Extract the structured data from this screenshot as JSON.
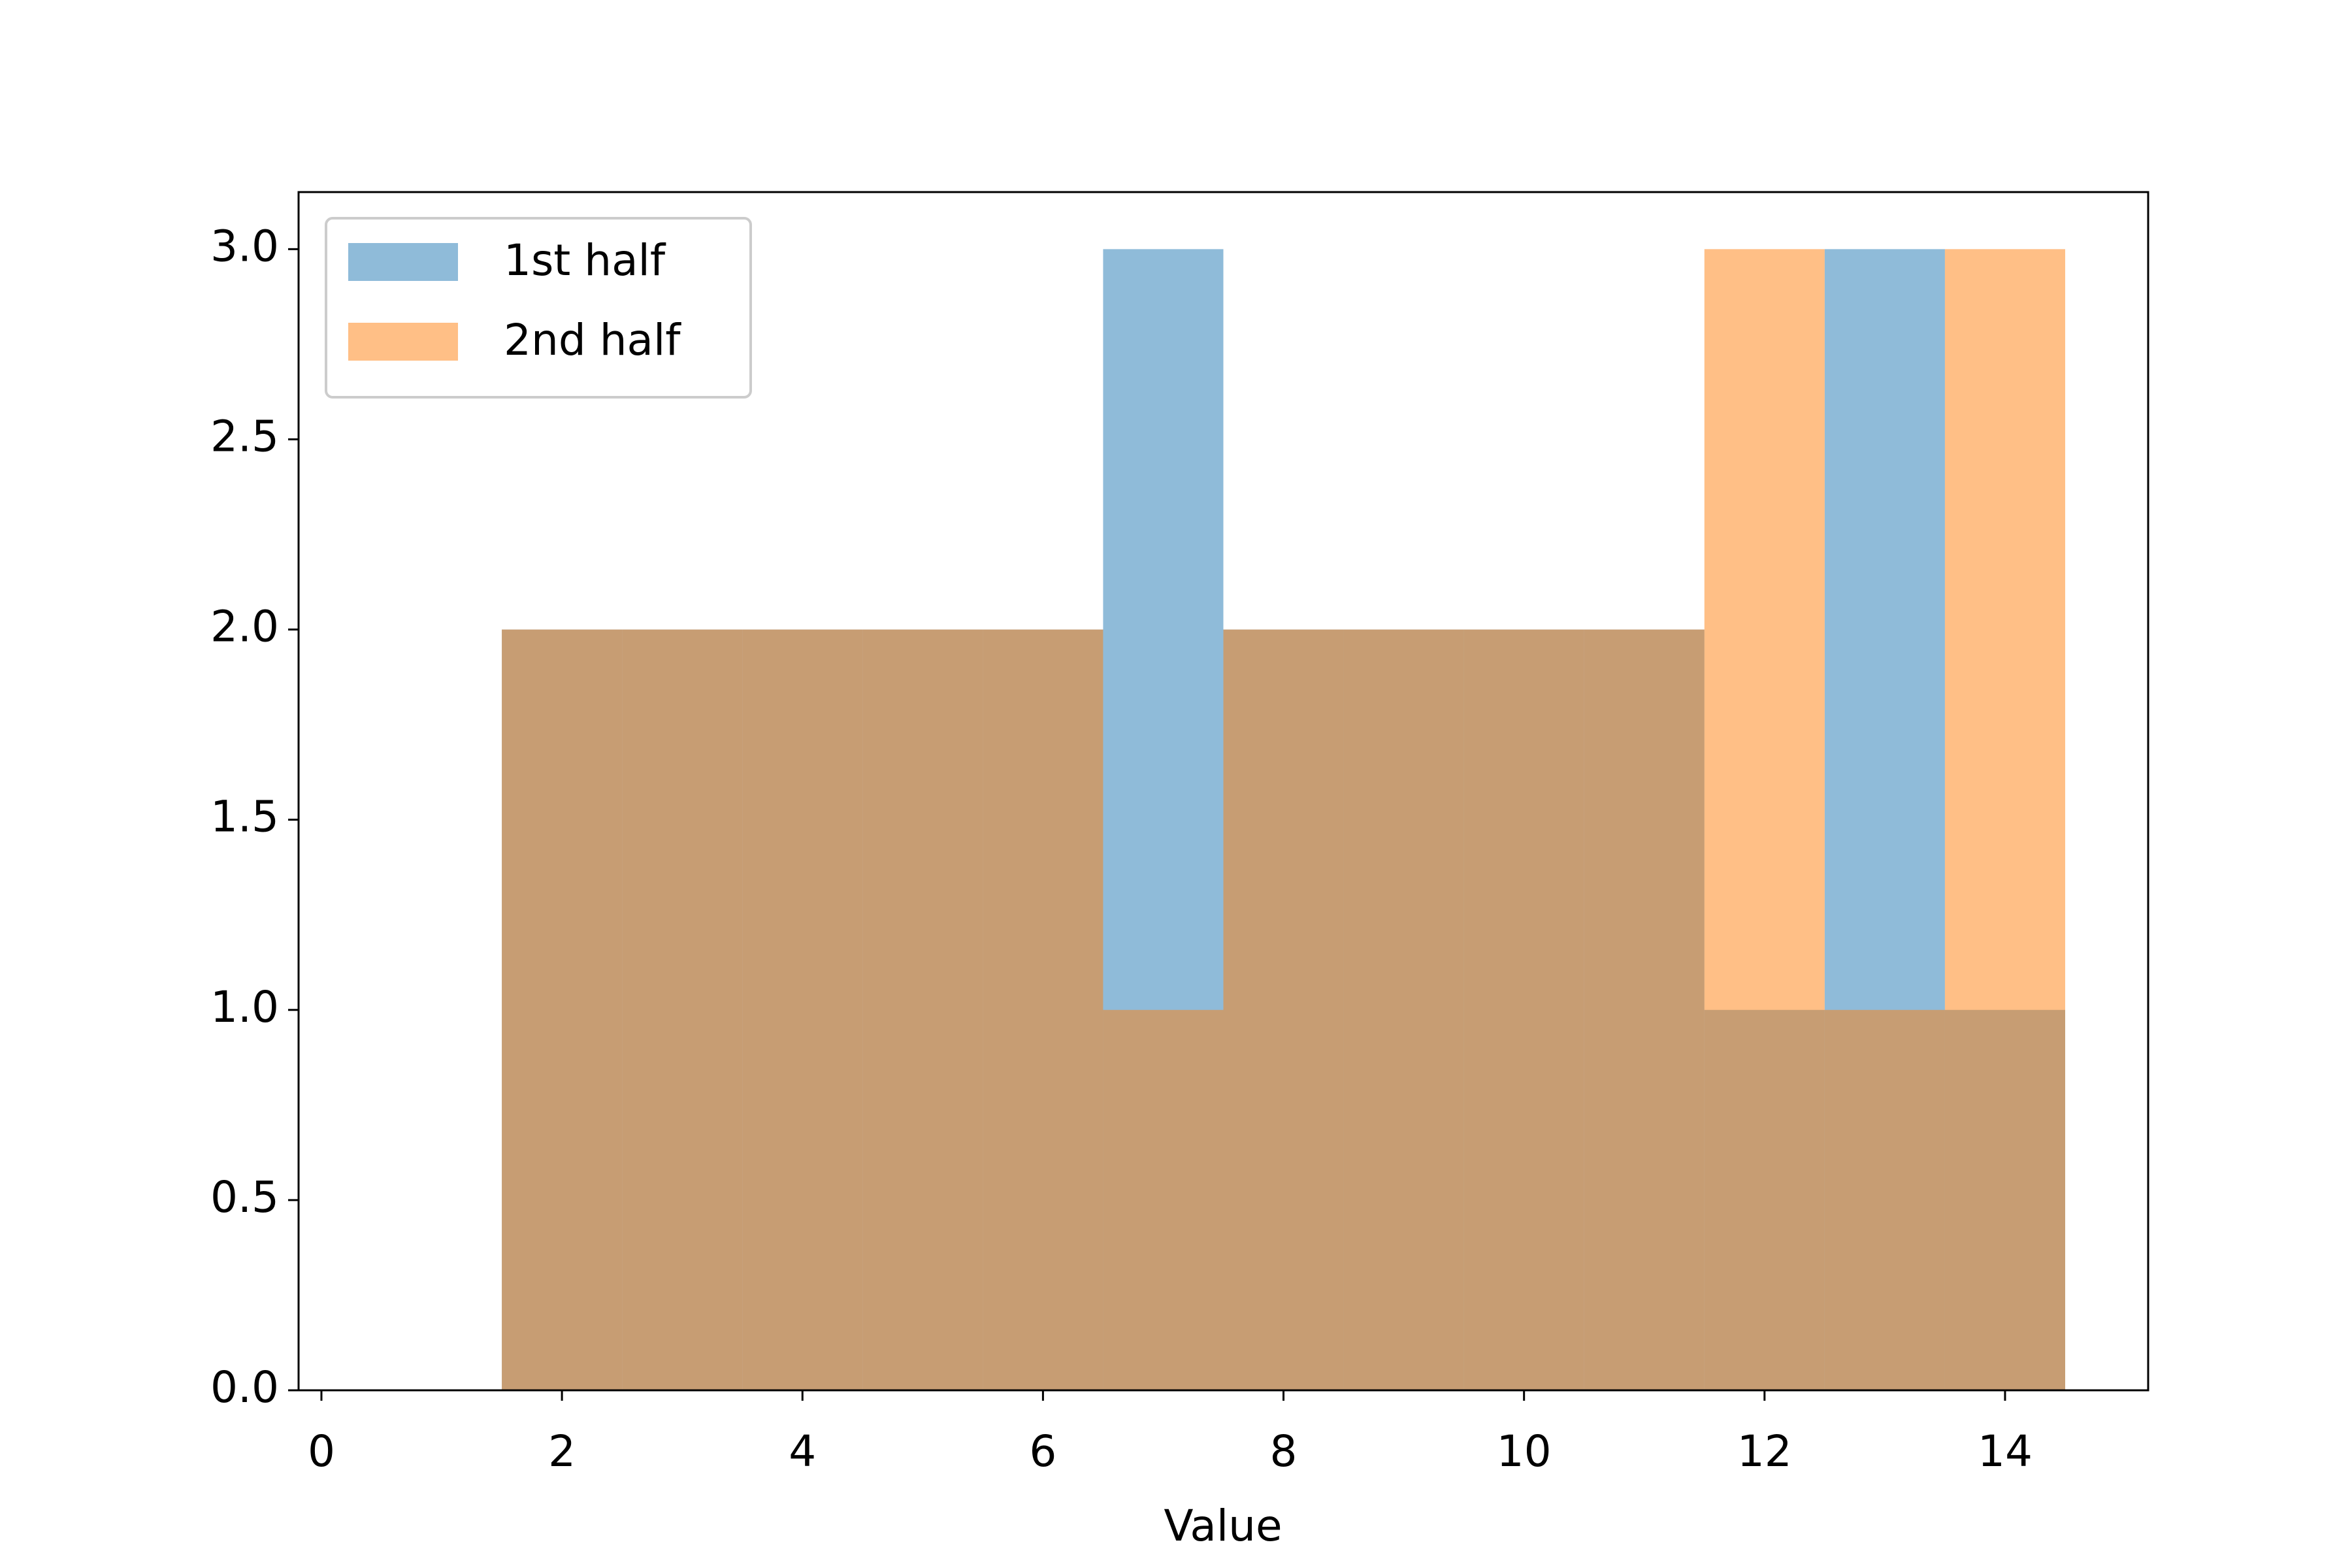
{
  "chart_data": {
    "type": "histogram",
    "xlabel": "Value",
    "bins": [
      1.5,
      2.5,
      3.5,
      4.5,
      5.5,
      6.5,
      7.5,
      8.5,
      9.5,
      10.5,
      11.5,
      12.5,
      13.5,
      14.5
    ],
    "series": [
      {
        "name": "1st half",
        "color": "#1f77b4",
        "values": [
          2,
          2,
          2,
          2,
          2,
          3,
          2,
          2,
          2,
          2,
          1,
          3,
          1
        ]
      },
      {
        "name": "2nd half",
        "color": "#ff7f0e",
        "values": [
          2,
          2,
          2,
          2,
          2,
          1,
          2,
          2,
          2,
          2,
          3,
          1,
          3
        ]
      }
    ],
    "opacity": 0.5,
    "xlim": [
      -0.19,
      15.19
    ],
    "ylim": [
      0,
      3.15
    ],
    "xticks": [
      0,
      2,
      4,
      6,
      8,
      10,
      12,
      14
    ],
    "yticks": [
      {
        "value": 0,
        "label": "0.0"
      },
      0.5,
      {
        "value": 1,
        "label": "1.0"
      },
      1.5,
      {
        "value": 2,
        "label": "2.0"
      },
      2.5,
      {
        "value": 3,
        "label": "3.0"
      }
    ],
    "legend": "upper left"
  }
}
